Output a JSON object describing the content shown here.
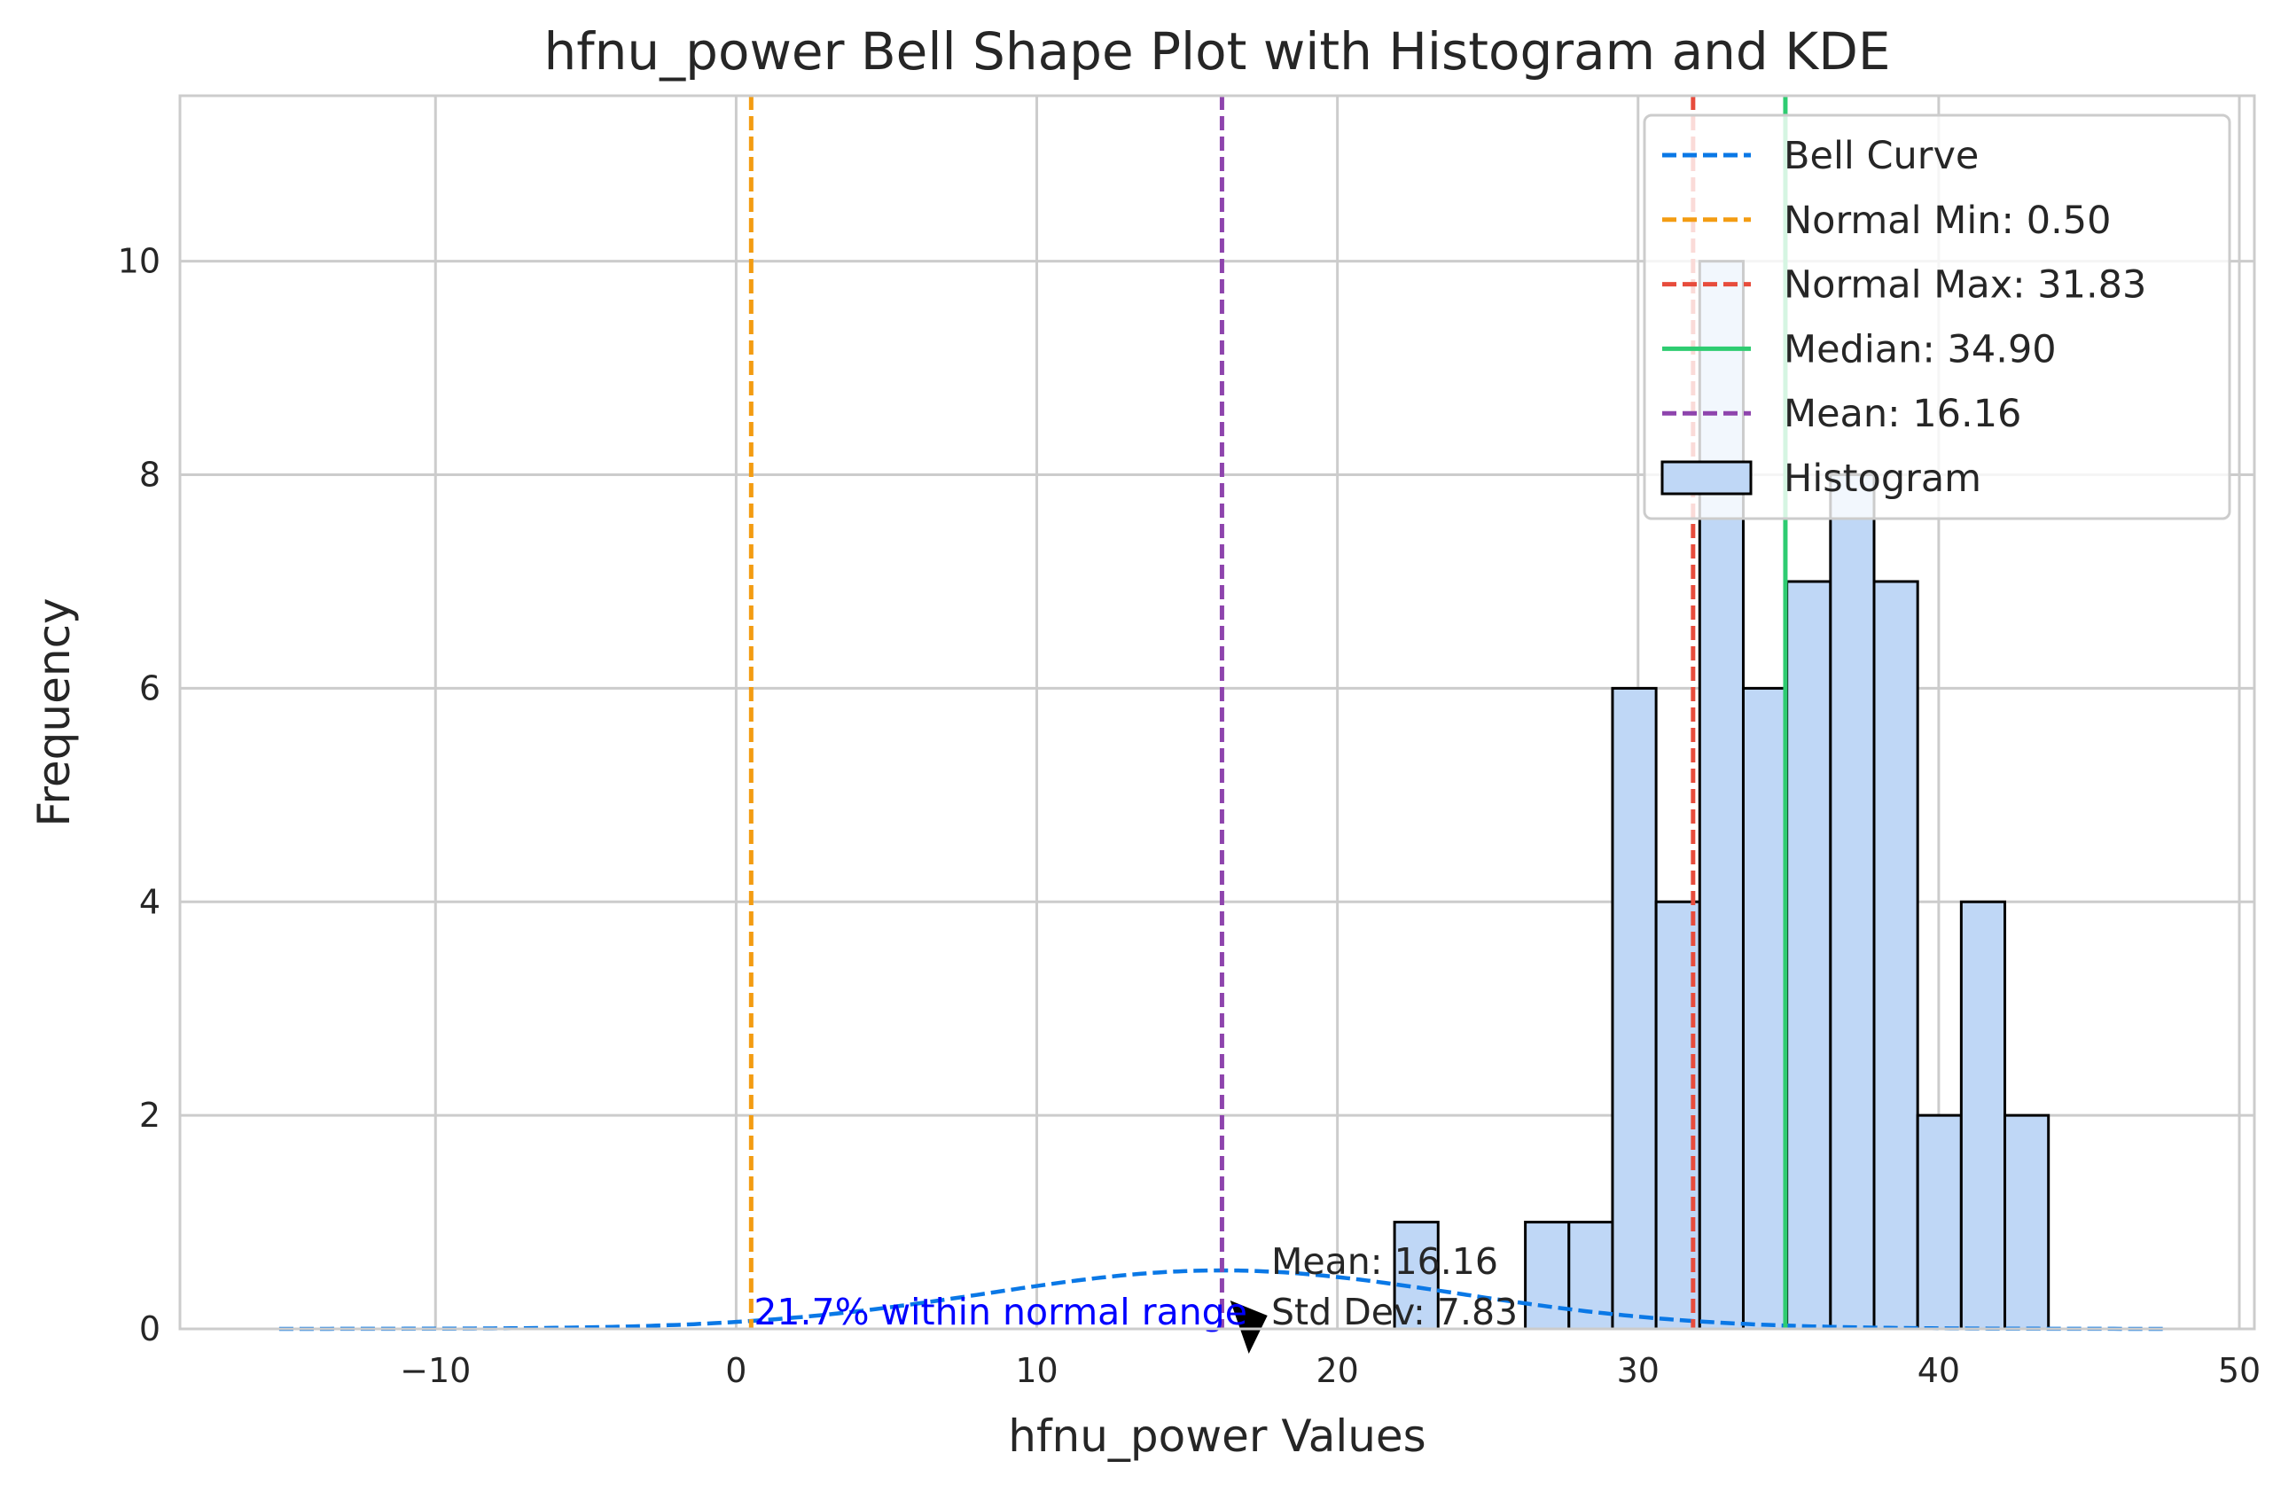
{
  "chart_data": {
    "type": "bar",
    "title": "hfnu_power Bell Shape Plot with Histogram and KDE",
    "xlabel": "hfnu_power Values",
    "ylabel": "Frequency",
    "xlim": [
      -18.5,
      50.5
    ],
    "ylim": [
      0,
      11.55
    ],
    "xticks": [
      -10,
      0,
      10,
      20,
      30,
      40,
      50
    ],
    "xtick_labels": [
      "−10",
      "0",
      "10",
      "20",
      "30",
      "40",
      "50"
    ],
    "yticks": [
      0,
      2,
      4,
      6,
      8,
      10
    ],
    "ytick_labels": [
      "0",
      "2",
      "4",
      "6",
      "8",
      "10"
    ],
    "grid": true,
    "legend_position": "top-right",
    "histogram": {
      "name": "Histogram",
      "color": "#bfd7f6",
      "edge_color": "#000000",
      "bins": [
        {
          "x0": 21.9,
          "x1": 23.35,
          "count": 1
        },
        {
          "x0": 23.35,
          "x1": 24.8,
          "count": 0
        },
        {
          "x0": 24.8,
          "x1": 26.25,
          "count": 0
        },
        {
          "x0": 26.25,
          "x1": 27.7,
          "count": 1
        },
        {
          "x0": 27.7,
          "x1": 29.15,
          "count": 1
        },
        {
          "x0": 29.15,
          "x1": 30.6,
          "count": 6
        },
        {
          "x0": 30.6,
          "x1": 32.05,
          "count": 4
        },
        {
          "x0": 32.05,
          "x1": 33.5,
          "count": 10
        },
        {
          "x0": 33.5,
          "x1": 34.95,
          "count": 6
        },
        {
          "x0": 34.95,
          "x1": 36.4,
          "count": 7
        },
        {
          "x0": 36.4,
          "x1": 37.85,
          "count": 8
        },
        {
          "x0": 37.85,
          "x1": 39.3,
          "count": 7
        },
        {
          "x0": 39.3,
          "x1": 40.75,
          "count": 2
        },
        {
          "x0": 40.75,
          "x1": 42.2,
          "count": 4
        },
        {
          "x0": 42.2,
          "x1": 43.65,
          "count": 2
        }
      ]
    },
    "bell_curve": {
      "name": "Bell Curve",
      "color": "#0a78e6",
      "mean": 16.16,
      "std": 7.83,
      "scale": 10.75,
      "x_range": [
        -15.2,
        47.5
      ]
    },
    "vlines": [
      {
        "name": "Normal Min: 0.50",
        "x": 0.5,
        "color": "#f39c12",
        "style": "dashed"
      },
      {
        "name": "Normal Max: 31.83",
        "x": 31.83,
        "color": "#e74c3c",
        "style": "dashed"
      },
      {
        "name": "Median: 34.90",
        "x": 34.9,
        "color": "#2ecc71",
        "style": "solid"
      },
      {
        "name": "Mean: 16.16",
        "x": 16.16,
        "color": "#8e44ad",
        "style": "dashed"
      }
    ],
    "annotations": {
      "stats_line1": "Mean: 16.16",
      "stats_line2": "Std Dev: 7.83",
      "within_range": "21.7% within normal range",
      "within_range_color": "#0000ff"
    },
    "legend": [
      {
        "label": "Bell Curve",
        "kind": "line",
        "color": "#0a78e6",
        "style": "dashed"
      },
      {
        "label": "Normal Min: 0.50",
        "kind": "line",
        "color": "#f39c12",
        "style": "dashed"
      },
      {
        "label": "Normal Max: 31.83",
        "kind": "line",
        "color": "#e74c3c",
        "style": "dashed"
      },
      {
        "label": "Median: 34.90",
        "kind": "line",
        "color": "#2ecc71",
        "style": "solid"
      },
      {
        "label": "Mean: 16.16",
        "kind": "line",
        "color": "#8e44ad",
        "style": "dashed"
      },
      {
        "label": "Histogram",
        "kind": "patch",
        "color": "#bfd7f6"
      }
    ]
  }
}
